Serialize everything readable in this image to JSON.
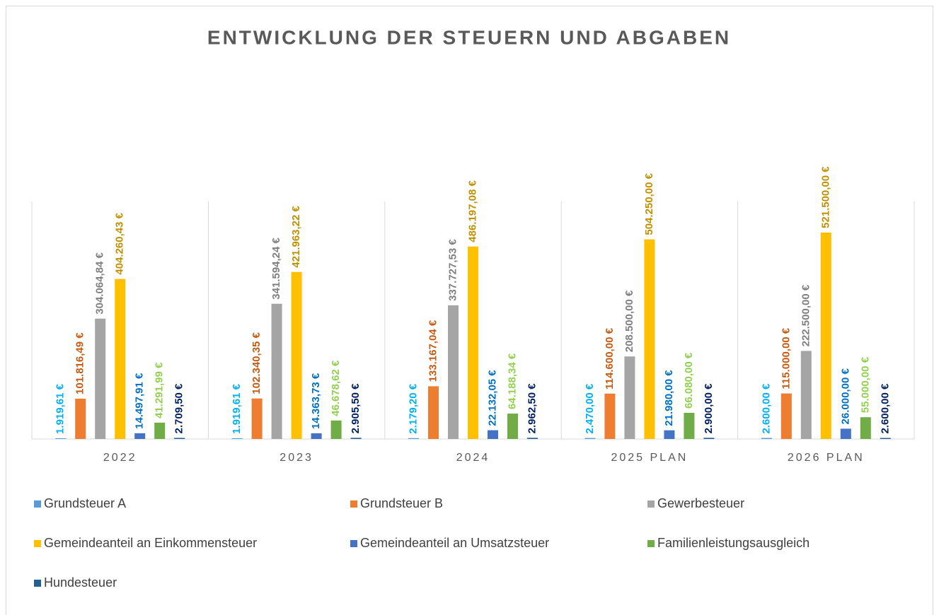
{
  "chart_data": {
    "type": "bar",
    "title": "ENTWICKLUNG DER STEUERN UND ABGABEN",
    "categories": [
      "2022",
      "2023",
      "2024",
      "2025 PLAN",
      "2026 PLAN"
    ],
    "ylim": [
      0,
      600000
    ],
    "series": [
      {
        "name": "Grundsteuer A",
        "color": "#5b9bd5",
        "label_color": "#00b0f0",
        "values": [
          1919.61,
          1919.61,
          2179.2,
          2470.0,
          2600.0
        ],
        "value_labels": [
          "1.919,61 €",
          "1.919,61 €",
          "2.179,20 €",
          "2.470,00 €",
          "2.600,00 €"
        ]
      },
      {
        "name": "Grundsteuer B",
        "color": "#ed7d31",
        "label_color": "#c55a11",
        "values": [
          101816.49,
          102340.35,
          133167.04,
          114600.0,
          115000.0
        ],
        "value_labels": [
          "101.816,49 €",
          "102.340,35 €",
          "133.167,04 €",
          "114.600,00 €",
          "115.000,00 €"
        ]
      },
      {
        "name": "Gewerbesteuer",
        "color": "#a5a5a5",
        "label_color": "#7f7f7f",
        "values": [
          304064.84,
          341594.24,
          337727.53,
          208500.0,
          222500.0
        ],
        "value_labels": [
          "304.064,84 €",
          "341.594,24 €",
          "337.727,53 €",
          "208.500,00 €",
          "222.500,00 €"
        ]
      },
      {
        "name": "Gemeindeanteil an Einkommensteuer",
        "color": "#ffc000",
        "label_color": "#bf9000",
        "values": [
          404260.43,
          421963.22,
          486197.08,
          504250.0,
          521500.0
        ],
        "value_labels": [
          "404.260,43 €",
          "421.963,22 €",
          "486.197,08 €",
          "504.250,00 €",
          "521.500,00 €"
        ]
      },
      {
        "name": "Gemeindeanteil an Umsatzsteuer",
        "color": "#4472c4",
        "label_color": "#0070c0",
        "values": [
          14497.91,
          14363.73,
          22132.05,
          21980.0,
          26000.0
        ],
        "value_labels": [
          "14.497,91 €",
          "14.363,73 €",
          "22.132,05 €",
          "21.980,00 €",
          "26.000,00 €"
        ]
      },
      {
        "name": "Familienleistungsausgleich",
        "color": "#70ad47",
        "label_color": "#92d050",
        "values": [
          41291.99,
          46678.62,
          64188.34,
          66080.0,
          55000.0
        ],
        "value_labels": [
          "41.291,99 €",
          "46.678,62 €",
          "64.188,34 €",
          "66.080,00 €",
          "55.000,00 €"
        ]
      },
      {
        "name": "Hundesteuer",
        "color": "#255e91",
        "label_color": "#002060",
        "values": [
          2709.5,
          2905.5,
          2962.5,
          2900.0,
          2600.0
        ],
        "value_labels": [
          "2.709,50 €",
          "2.905,50 €",
          "2.962,50 €",
          "2.900,00 €",
          "2.600,00 €"
        ]
      }
    ]
  }
}
